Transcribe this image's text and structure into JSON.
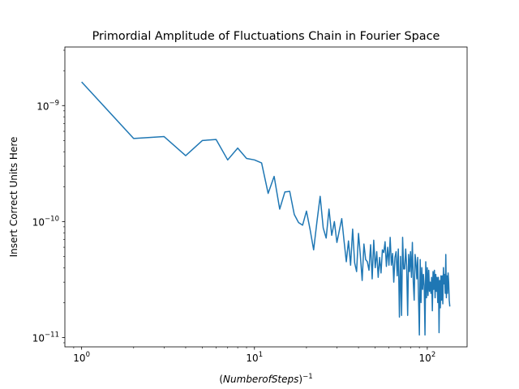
{
  "chart_data": {
    "type": "line",
    "title": "Primordial Amplitude of Fluctuations Chain in Fourier Space",
    "xlabel": "(NumberofSteps)",
    "xlabel_exponent": "−1",
    "ylabel": "Insert Correct Units Here",
    "xscale": "log",
    "yscale": "log",
    "xlim": [
      0.8,
      170
    ],
    "ylim": [
      8.3e-12,
      3.2e-09
    ],
    "grid": false,
    "legend": "none",
    "x_ticks": [
      {
        "value": 1,
        "base": "10",
        "exp": "0"
      },
      {
        "value": 10,
        "base": "10",
        "exp": "1"
      },
      {
        "value": 100,
        "base": "10",
        "exp": "2"
      }
    ],
    "y_ticks": [
      {
        "value": 1e-11,
        "base": "10",
        "exp": "−11"
      },
      {
        "value": 1e-10,
        "base": "10",
        "exp": "−10"
      },
      {
        "value": 1e-09,
        "base": "10",
        "exp": "−9"
      }
    ],
    "series": [
      {
        "color": "#1f77b4",
        "x": [
          0,
          1,
          2,
          3,
          4,
          5,
          6,
          7,
          8,
          9,
          10,
          11,
          12,
          13,
          14,
          15,
          16,
          17,
          18,
          19,
          20,
          21,
          22,
          23,
          24,
          25,
          26,
          27,
          28,
          29,
          30,
          31,
          32,
          33,
          34,
          35,
          36,
          37,
          38,
          39,
          40,
          41,
          42,
          43,
          44,
          45,
          46,
          47,
          48,
          49,
          50,
          51,
          52,
          53,
          54,
          55,
          56,
          57,
          58,
          59,
          60,
          61,
          62,
          63,
          64,
          65,
          66,
          67,
          68,
          69,
          70,
          71,
          72,
          73,
          74,
          75,
          76,
          77,
          78,
          79,
          80,
          81,
          82,
          83,
          84,
          85,
          86,
          87,
          88,
          89,
          90,
          91,
          92,
          93,
          94,
          95,
          96,
          97,
          98,
          99,
          100,
          101,
          102,
          103,
          104,
          105,
          106,
          107,
          108,
          109,
          110,
          111,
          112,
          113,
          114,
          115,
          116,
          117,
          118,
          119,
          120,
          121,
          122,
          123,
          124,
          125,
          126,
          127,
          128,
          129,
          130,
          131,
          132,
          133,
          134,
          135
        ],
        "y": [
          1.6e-09,
          1.6e-09,
          5.2e-10,
          5.4e-10,
          3.7e-10,
          5e-10,
          5.1e-10,
          3.4e-10,
          4.3e-10,
          3.5e-10,
          3.4e-10,
          3.2e-10,
          1.75e-10,
          2.45e-10,
          1.28e-10,
          1.8e-10,
          1.82e-10,
          1.15e-10,
          9.8e-11,
          9.3e-11,
          1.23e-10,
          8.5e-11,
          5.7e-11,
          1e-10,
          1.65e-10,
          8.8e-11,
          7.2e-11,
          1.28e-10,
          7.6e-11,
          1e-10,
          6.6e-11,
          8.4e-11,
          1.06e-10,
          6.8e-11,
          4.5e-11,
          6.8e-11,
          4.2e-11,
          8.6e-11,
          4.4e-11,
          3.7e-11,
          7.9e-11,
          5.1e-11,
          3.1e-11,
          6.4e-11,
          4.7e-11,
          4.5e-11,
          3.8e-11,
          6.3e-11,
          3.2e-11,
          6.9e-11,
          4e-11,
          5.5e-11,
          3.3e-11,
          4.9e-11,
          3.6e-11,
          5.7e-11,
          5.4e-11,
          6.7e-11,
          4.1e-11,
          6e-11,
          4.2e-11,
          7.3e-11,
          4.2e-11,
          5.3e-11,
          3e-11,
          4.9e-11,
          5.5e-11,
          3.4e-11,
          5.8e-11,
          1.5e-11,
          5e-11,
          1.55e-11,
          7.3e-11,
          3.9e-11,
          3.9e-11,
          5.8e-11,
          4.1e-11,
          1.55e-11,
          5.2e-11,
          3.7e-11,
          5.5e-11,
          3.3e-11,
          6.6e-11,
          3e-11,
          2.1e-11,
          5.2e-11,
          4.4e-11,
          3.2e-11,
          4.9e-11,
          2.2e-11,
          1.05e-11,
          4.7e-11,
          2e-11,
          4e-11,
          2.6e-11,
          3.5e-11,
          2.8e-11,
          1.05e-11,
          4.5e-11,
          2.2e-11,
          4e-11,
          2.3e-11,
          3.8e-11,
          2.5e-11,
          3e-11,
          2.4e-11,
          3.3e-11,
          1.7e-11,
          3.7e-11,
          2.6e-11,
          3.8e-11,
          2.2e-11,
          3.5e-11,
          2.5e-11,
          3.3e-11,
          2e-11,
          3.3e-11,
          1.1e-11,
          3.1e-11,
          1.8e-11,
          3.4e-11,
          2.1e-11,
          3.4e-11,
          1.95e-11,
          4e-11,
          2.9e-11,
          3.5e-11,
          2.4e-11,
          5.2e-11,
          2.2e-11,
          3.4e-11,
          2.4e-11,
          3.6e-11,
          3e-11,
          2.1e-11,
          1.85e-11
        ]
      }
    ]
  }
}
